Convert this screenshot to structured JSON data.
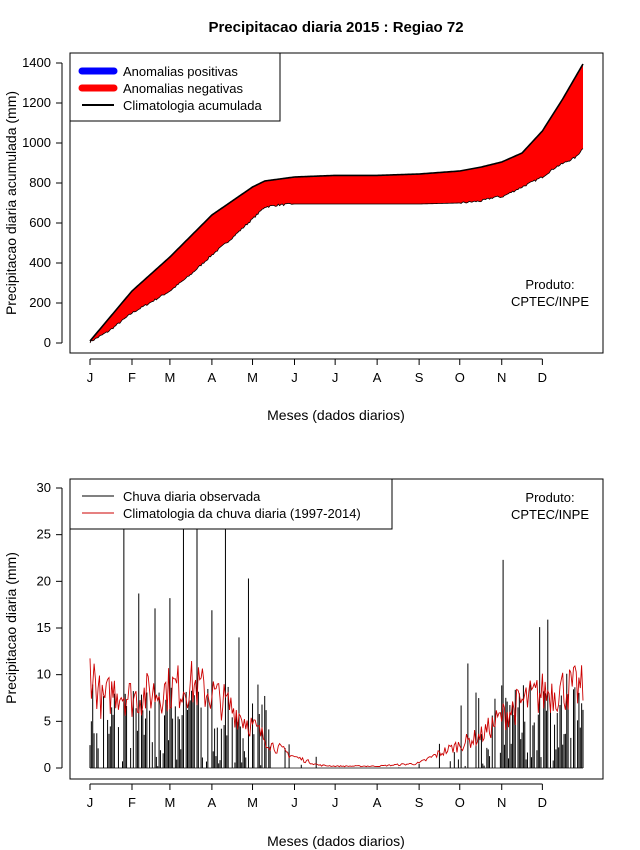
{
  "page_title": "Precipitacao diaria 2015 : Regiao 72",
  "colors": {
    "positive": "#0000ff",
    "negative": "#ff0000",
    "observed": "#000000",
    "climatology": "#cc0000"
  },
  "chart_data": [
    {
      "type": "area",
      "xlabel": "Meses (dados diarios)",
      "ylabel": "Precipitacao diaria acumulada (mm)",
      "xticks": [
        "J",
        "F",
        "M",
        "A",
        "M",
        "J",
        "J",
        "A",
        "S",
        "O",
        "N",
        "D"
      ],
      "xlim": [
        1,
        365
      ],
      "ylim": [
        0,
        1400
      ],
      "yticks": [
        0,
        200,
        400,
        600,
        800,
        1000,
        1200,
        1400
      ],
      "legend_position": "top-left",
      "legend": [
        "Anomalias positivas",
        "Anomalias negativas",
        "Climatologia acumulada"
      ],
      "annotation": [
        "Produto:",
        "CPTEC/INPE"
      ],
      "climatology_cumulative": {
        "day": [
          1,
          32,
          60,
          91,
          121,
          130,
          152,
          182,
          213,
          244,
          274,
          290,
          305,
          320,
          335,
          350,
          365
        ],
        "mm": [
          10,
          260,
          430,
          640,
          780,
          810,
          830,
          838,
          838,
          845,
          860,
          880,
          905,
          950,
          1060,
          1220,
          1395
        ]
      },
      "observed_cumulative": {
        "day": [
          1,
          15,
          32,
          45,
          60,
          75,
          91,
          105,
          121,
          130,
          140,
          152,
          182,
          213,
          244,
          274,
          290,
          300,
          305,
          320,
          335,
          345,
          360,
          365
        ],
        "mm": [
          5,
          60,
          150,
          200,
          260,
          340,
          440,
          520,
          620,
          680,
          690,
          695,
          695,
          695,
          695,
          700,
          710,
          730,
          730,
          780,
          830,
          880,
          930,
          975
        ]
      }
    },
    {
      "type": "bar",
      "xlabel": "Meses (dados diarios)",
      "ylabel": "Precipitacao diaria (mm)",
      "xticks": [
        "J",
        "F",
        "M",
        "A",
        "M",
        "J",
        "J",
        "A",
        "S",
        "O",
        "N",
        "D"
      ],
      "xlim": [
        1,
        365
      ],
      "ylim": [
        0,
        30
      ],
      "yticks": [
        0,
        5,
        10,
        15,
        20,
        25,
        30
      ],
      "legend_position": "top-left",
      "legend": [
        "Chuva diaria observada",
        "Climatologia da chuva diaria (1997-2014)"
      ],
      "annotation": [
        "Produto:",
        "CPTEC/INPE"
      ],
      "observed_peaks": [
        {
          "day": 26,
          "mm": 27.5
        },
        {
          "day": 37,
          "mm": 18.7
        },
        {
          "day": 49,
          "mm": 17.1
        },
        {
          "day": 60,
          "mm": 18.2
        },
        {
          "day": 70,
          "mm": 28.6
        },
        {
          "day": 80,
          "mm": 25.9
        },
        {
          "day": 91,
          "mm": 16.9
        },
        {
          "day": 101,
          "mm": 27.3
        },
        {
          "day": 118,
          "mm": 20.3
        },
        {
          "day": 111,
          "mm": 14.0
        },
        {
          "day": 131,
          "mm": 6.2
        },
        {
          "day": 168,
          "mm": 1.2
        },
        {
          "day": 275,
          "mm": 6.7
        },
        {
          "day": 280,
          "mm": 11.2
        },
        {
          "day": 306,
          "mm": 22.3
        },
        {
          "day": 333,
          "mm": 15.1
        },
        {
          "day": 339,
          "mm": 15.9
        },
        {
          "day": 353,
          "mm": 10.1
        }
      ],
      "climatology_daily": {
        "day": [
          1,
          10,
          20,
          32,
          45,
          60,
          75,
          91,
          105,
          121,
          135,
          152,
          170,
          182,
          213,
          244,
          258,
          274,
          290,
          305,
          320,
          335,
          350,
          365
        ],
        "mm": [
          11.0,
          7.0,
          8.5,
          7.5,
          8.0,
          8.5,
          9.0,
          8.0,
          6.5,
          4.5,
          2.5,
          1.2,
          0.3,
          0.2,
          0.2,
          0.5,
          1.5,
          2.5,
          3.5,
          5.5,
          7.0,
          8.0,
          8.5,
          8.5
        ]
      }
    }
  ]
}
